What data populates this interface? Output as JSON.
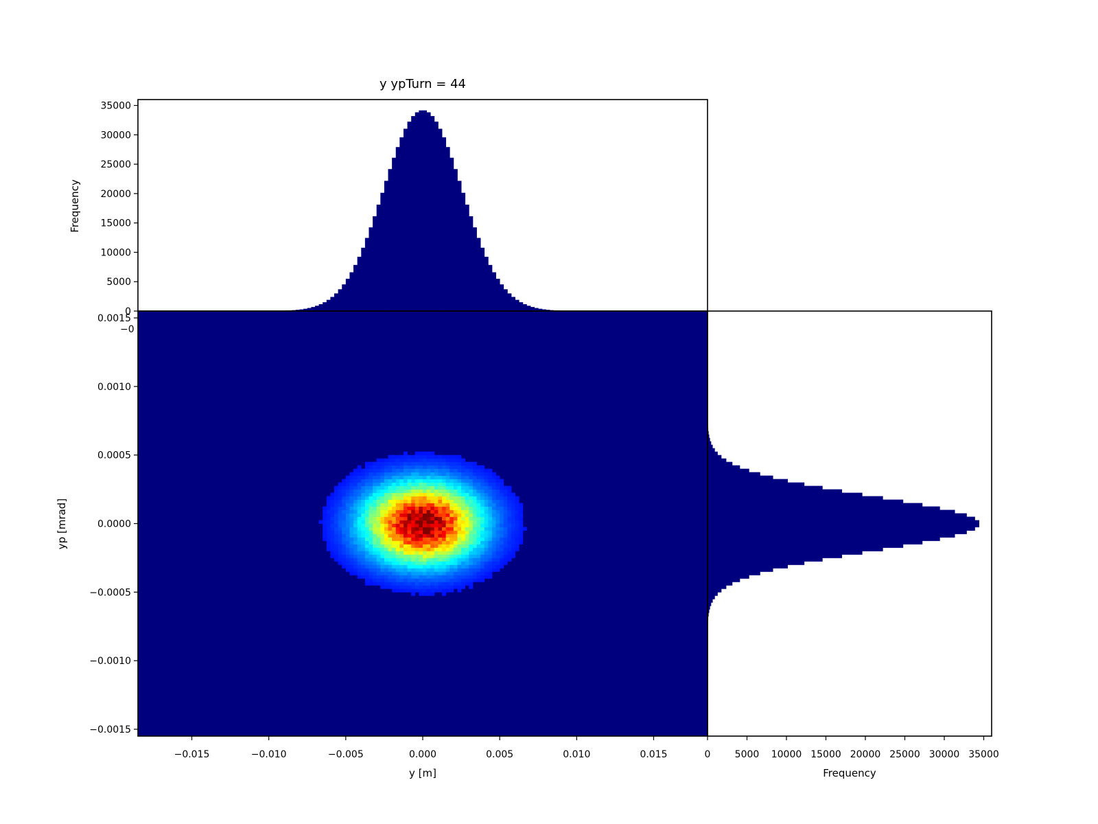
{
  "chart_data": [
    {
      "panel": "top",
      "type": "bar",
      "title": "y ypTurn = 44",
      "xlabel": "",
      "ylabel": "Frequency",
      "xlim": [
        -0.0185,
        0.0185
      ],
      "ylim": [
        0,
        36000
      ],
      "yticks": [
        0,
        5000,
        10000,
        15000,
        20000,
        25000,
        30000,
        35000
      ],
      "ytick_labels": [
        "0",
        "5000",
        "10000",
        "15000",
        "20000",
        "25000",
        "30000",
        "35000"
      ],
      "xtick_fragment": "−0",
      "bins": {
        "start": -0.0185,
        "width": 0.00025,
        "count": 148
      },
      "peak_center": 0.0,
      "peak_value": 34200,
      "sigma": 0.00255,
      "color": "#00007f"
    },
    {
      "panel": "main",
      "type": "heatmap",
      "xlabel": "y [m]",
      "ylabel": "yp [mrad]",
      "xlim": [
        -0.0185,
        0.0185
      ],
      "ylim": [
        -0.00155,
        0.00155
      ],
      "xticks": [
        -0.015,
        -0.01,
        -0.005,
        0.0,
        0.005,
        0.01,
        0.015
      ],
      "xtick_labels": [
        "−0.015",
        "−0.010",
        "−0.005",
        "0.000",
        "0.005",
        "0.010",
        "0.015"
      ],
      "yticks": [
        -0.0015,
        -0.001,
        -0.0005,
        0.0,
        0.0005,
        0.001,
        0.0015
      ],
      "ytick_labels": [
        "−0.0015",
        "−0.0010",
        "−0.0005",
        "0.0000",
        "0.0005",
        "0.0010",
        "0.0015"
      ],
      "bins_x": 148,
      "bins_y": 124,
      "center": [
        0.0,
        0.0
      ],
      "sigma_x": 0.00255,
      "sigma_y": 0.0002,
      "colormap": "jet",
      "background_color": "#00007f"
    },
    {
      "panel": "right",
      "type": "bar",
      "orientation": "horizontal",
      "xlabel": "Frequency",
      "ylabel": "",
      "xlim": [
        0,
        36000
      ],
      "ylim": [
        -0.00155,
        0.00155
      ],
      "xticks": [
        0,
        5000,
        10000,
        15000,
        20000,
        25000,
        30000,
        35000
      ],
      "xtick_labels": [
        "0",
        "5000",
        "10000",
        "15000",
        "20000",
        "25000",
        "30000",
        "35000"
      ],
      "bins": {
        "start": -0.00155,
        "width": 2.5e-05,
        "count": 124
      },
      "peak_center": 0.0,
      "peak_value": 34500,
      "sigma": 0.0002,
      "color": "#00007f"
    }
  ]
}
